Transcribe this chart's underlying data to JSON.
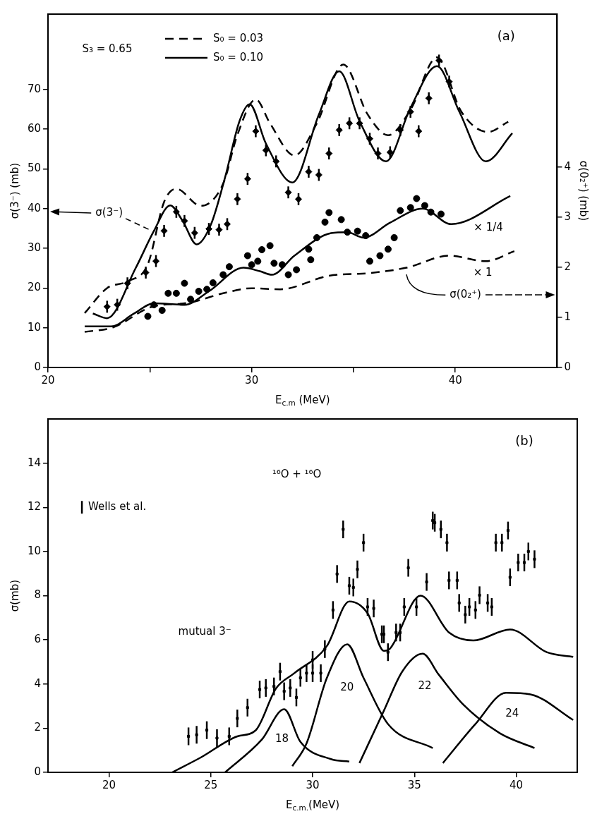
{
  "chart_data": [
    {
      "type": "line",
      "title": "(a)",
      "xlabel": "E$_{c.m}$ (MeV)",
      "ylabel": "σ(3⁻) (mb)",
      "y2label": "σ(0₂⁺) (mb)",
      "annotations": [
        "S₃ = 0.65",
        {
          "text": "σ(3⁻)",
          "x": 25.2,
          "y": 34.4
        },
        {
          "text": "σ(0₂⁺)",
          "x": 37.6,
          "y": 24.5
        },
        "× 1/4",
        "× 1"
      ],
      "xlim": [
        20,
        45
      ],
      "xticks": [
        20,
        {
          "value": 25,
          "label": null
        },
        30,
        {
          "value": 35,
          "label": null
        },
        40
      ],
      "ylim": [
        0,
        89
      ],
      "yticks": [
        0,
        10,
        20,
        30,
        40,
        50,
        60,
        70
      ],
      "y2lim": [
        0,
        7.05
      ],
      "y2ticks": [
        0,
        1,
        2,
        3,
        4
      ],
      "legend": "top",
      "series": [
        {
          "name": "S₀ = 0.03",
          "type": "line",
          "line_style": "dashed",
          "color": "#000000",
          "x": [
            21.8,
            22.9,
            23.9,
            24.9,
            25.7,
            26.3,
            27.5,
            28.6,
            29.3,
            30.2,
            30.9,
            32.1,
            33.2,
            34.5,
            35.7,
            36.7,
            37.8,
            39.1,
            40.3,
            41.6,
            42.6
          ],
          "values": [
            13.7,
            20,
            21.7,
            26,
            41.7,
            45,
            40.7,
            46.3,
            58.6,
            67.5,
            61.5,
            53.4,
            61.5,
            76.3,
            63.7,
            58.5,
            64.9,
            78.1,
            64.4,
            59.3,
            61.9
          ]
        },
        {
          "name": "S₀ = 0.10",
          "type": "line",
          "line_style": "solid",
          "color": "#000000",
          "x": [
            22.2,
            22.9,
            24.3,
            25.2,
            26.0,
            26.6,
            27.3,
            28.0,
            28.7,
            29.4,
            29.9,
            30.7,
            32.0,
            33.3,
            34.3,
            35.3,
            36.6,
            37.8,
            39.1,
            40.2,
            41.5,
            42.8
          ],
          "values": [
            13.6,
            12.4,
            25,
            34.4,
            40.8,
            37,
            31,
            36,
            48,
            62,
            66.3,
            56.4,
            46.6,
            63.7,
            74.6,
            62,
            51.9,
            65.4,
            75.9,
            64.4,
            51.9,
            59
          ]
        },
        {
          "type": "line",
          "line_style": "dashed",
          "axis": "y2",
          "color": "#000000",
          "x": [
            21.8,
            23.2,
            25.1,
            26.9,
            28.6,
            30.0,
            31.4,
            33.8,
            35.7,
            37.6,
            39.7,
            41.5,
            42.9
          ],
          "values": [
            0.71,
            0.8,
            1.21,
            1.29,
            1.48,
            1.58,
            1.56,
            1.83,
            1.88,
            1.99,
            2.23,
            2.12,
            2.32
          ]
        },
        {
          "type": "line",
          "line_style": "solid",
          "axis": "y2",
          "color": "#000000",
          "x": [
            21.8,
            23.1,
            24.2,
            25.2,
            26.7,
            27.9,
            29.6,
            30.4,
            31.0,
            32.1,
            33.9,
            34.7,
            35.5,
            36.8,
            38.4,
            39.8,
            42.7
          ],
          "values": [
            0.82,
            0.82,
            1.07,
            1.28,
            1.25,
            1.52,
            1.99,
            1.92,
            1.85,
            2.23,
            2.68,
            2.7,
            2.59,
            2.89,
            3.17,
            2.86,
            3.42
          ]
        },
        {
          "type": "scatter",
          "marker": "diamond",
          "color": "#000000",
          "x": [
            22.9,
            23.4,
            23.9,
            24.8,
            25.3,
            25.7,
            26.3,
            26.7,
            27.2,
            27.9,
            28.4,
            28.8,
            29.3,
            29.8,
            30.2,
            30.7,
            31.2,
            31.8,
            32.3,
            32.8,
            33.3,
            33.8,
            34.3,
            34.8,
            35.3,
            35.8,
            36.2,
            36.8,
            37.3,
            37.8,
            38.2,
            38.7,
            39.2,
            39.7
          ],
          "values": [
            15.3,
            15.8,
            21.2,
            23.9,
            26.8,
            34.4,
            39.2,
            36.9,
            33.9,
            34.9,
            34.7,
            36.1,
            42.4,
            47.5,
            59.5,
            54.7,
            51.9,
            44.1,
            42.4,
            49.3,
            48.5,
            53.9,
            59.8,
            61.5,
            61.5,
            57.6,
            53.9,
            54.2,
            59.8,
            64.4,
            59.5,
            67.8,
            77.3,
            72
          ],
          "errors": [
            1.5,
            1.5,
            1.5,
            1.5,
            1.5,
            1.5,
            1.5,
            1.5,
            1.5,
            1.5,
            1.5,
            1.5,
            1.5,
            1.5,
            1.5,
            1.5,
            1.5,
            1.5,
            1.5,
            1.5,
            1.5,
            1.5,
            1.5,
            1.5,
            1.5,
            1.5,
            1.5,
            1.5,
            1.5,
            1.5,
            1.5,
            1.5,
            1.5,
            1.5
          ]
        },
        {
          "type": "scatter",
          "marker": "circle",
          "axis": "y2",
          "color": "#000000",
          "x": [
            24.9,
            25.6,
            25.9,
            26.3,
            26.7,
            27.4,
            28.1,
            28.9,
            29.8,
            30.3,
            30.5,
            31.8,
            32.9,
            33.6,
            33.8,
            34.4,
            35.8,
            36.3,
            36.7,
            38.1
          ],
          "values": [
            1.02,
            1.14,
            1.48,
            1.48,
            1.68,
            1.52,
            1.69,
            2.01,
            2.23,
            2.12,
            2.35,
            1.85,
            2.15,
            2.9,
            3.09,
            2.95,
            2.12,
            2.23,
            2.36,
            3.37
          ]
        },
        {
          "type": "scatter",
          "marker": "circle",
          "axis": "y2",
          "color": "#000000",
          "x": [
            25.2,
            27.0,
            27.8,
            28.6,
            30.0,
            30.9,
            31.1,
            31.5,
            32.2,
            32.8,
            33.2,
            34.7,
            35.2,
            35.6,
            37.0,
            37.3,
            37.8,
            38.5,
            38.8,
            39.3
          ],
          "values": [
            1.25,
            1.36,
            1.56,
            1.85,
            2.05,
            2.43,
            2.08,
            2.05,
            1.95,
            2.36,
            2.59,
            2.7,
            2.72,
            2.63,
            2.59,
            3.13,
            3.19,
            3.23,
            3.1,
            3.06
          ]
        }
      ]
    },
    {
      "type": "line",
      "title": "(b)",
      "xlabel": "E$_{c.m.}$(MeV)",
      "ylabel": "σ(mb)",
      "annotations": [
        "¹⁶O + ¹⁶O",
        "mutual 3⁻",
        "18",
        "20",
        "22",
        "24"
      ],
      "xlim": [
        17,
        43
      ],
      "xticks": [
        20,
        25,
        30,
        35,
        40
      ],
      "ylim": [
        0,
        16
      ],
      "yticks": [
        0,
        2,
        4,
        6,
        8,
        10,
        12,
        14
      ],
      "legend": "left",
      "series": [
        {
          "type": "line",
          "color": "#000000",
          "x": [
            23.1,
            24.5,
            26.3,
            27.2,
            28.2,
            29.1,
            30.7,
            31.8,
            32.7,
            33.5,
            33.8,
            35.3,
            36.7,
            37.9,
            39.7,
            41.5,
            42.8
          ],
          "values": [
            0,
            0.67,
            1.63,
            1.9,
            3.8,
            4.49,
            5.72,
            7.74,
            7.2,
            5.5,
            5.6,
            8.0,
            6.33,
            5.97,
            6.47,
            5.44,
            5.23
          ]
        },
        {
          "type": "line",
          "color": "#000000",
          "x": [
            25.7,
            27.5,
            28.6,
            29.4,
            30.9,
            31.8
          ],
          "values": [
            0,
            1.48,
            2.86,
            1.38,
            0.6,
            0.49
          ]
        },
        {
          "type": "line",
          "color": "#000000",
          "x": [
            29.0,
            29.7,
            30.7,
            31.7,
            32.5,
            33.7,
            35.9
          ],
          "values": [
            0.28,
            1.31,
            4.28,
            5.8,
            4.28,
            2.19,
            1.1
          ]
        },
        {
          "type": "line",
          "color": "#000000",
          "x": [
            32.3,
            33.5,
            34.4,
            35.4,
            36.2,
            37.4,
            39.2,
            40.9
          ],
          "values": [
            0.42,
            2.79,
            4.56,
            5.37,
            4.42,
            3.07,
            1.77,
            1.1
          ]
        },
        {
          "type": "line",
          "color": "#000000",
          "x": [
            36.4,
            38.0,
            39.5,
            40.7,
            42.8
          ],
          "values": [
            0.42,
            2.19,
            3.6,
            3.53,
            2.37
          ]
        },
        {
          "name": "Wells et al.",
          "type": "scatter",
          "marker": "square",
          "color": "#000000",
          "x": [
            23.9,
            24.3,
            24.8,
            25.3,
            25.9,
            26.3,
            26.8,
            27.4,
            27.7,
            28.1,
            28.4,
            28.6,
            28.9,
            29.2,
            29.4,
            29.7,
            30.0,
            30.4,
            30.0,
            30.6,
            31.0,
            31.2,
            31.5,
            31.8,
            32.0,
            32.2,
            32.5,
            32.7,
            33.0,
            33.4,
            33.5,
            33.7,
            34.1,
            34.3,
            34.5,
            34.7,
            35.1,
            35.6,
            35.9,
            36.0,
            36.3,
            36.6,
            36.7,
            37.1,
            37.2,
            37.5,
            37.7,
            38.0,
            38.2,
            38.6,
            38.8,
            39.0,
            39.3,
            39.6,
            39.7,
            40.1,
            40.4,
            40.6,
            40.9
          ],
          "values": [
            1.63,
            1.7,
            1.91,
            1.55,
            1.63,
            2.44,
            2.93,
            3.75,
            3.82,
            3.89,
            4.56,
            3.67,
            3.82,
            3.39,
            4.28,
            4.49,
            4.49,
            4.49,
            5.09,
            5.58,
            7.35,
            8.98,
            11.0,
            8.45,
            8.37,
            9.19,
            10.4,
            7.49,
            7.42,
            6.25,
            6.25,
            5.44,
            6.33,
            6.33,
            7.49,
            9.26,
            7.49,
            8.62,
            11.4,
            11.3,
            11.0,
            10.4,
            8.69,
            8.69,
            7.67,
            7.14,
            7.49,
            7.35,
            8.02,
            7.67,
            7.49,
            10.4,
            10.4,
            10.95,
            8.83,
            9.5,
            9.5,
            10.0,
            9.65
          ],
          "errors": [
            0.4,
            0.4,
            0.4,
            0.4,
            0.4,
            0.4,
            0.4,
            0.4,
            0.4,
            0.4,
            0.4,
            0.4,
            0.4,
            0.4,
            0.4,
            0.4,
            0.4,
            0.4,
            0.4,
            0.4,
            0.4,
            0.4,
            0.4,
            0.4,
            0.4,
            0.4,
            0.4,
            0.4,
            0.4,
            0.4,
            0.4,
            0.4,
            0.4,
            0.4,
            0.4,
            0.4,
            0.4,
            0.4,
            0.4,
            0.4,
            0.4,
            0.4,
            0.4,
            0.4,
            0.4,
            0.4,
            0.4,
            0.4,
            0.4,
            0.4,
            0.4,
            0.4,
            0.4,
            0.4,
            0.4,
            0.4,
            0.4,
            0.4,
            0.4
          ]
        }
      ]
    }
  ]
}
